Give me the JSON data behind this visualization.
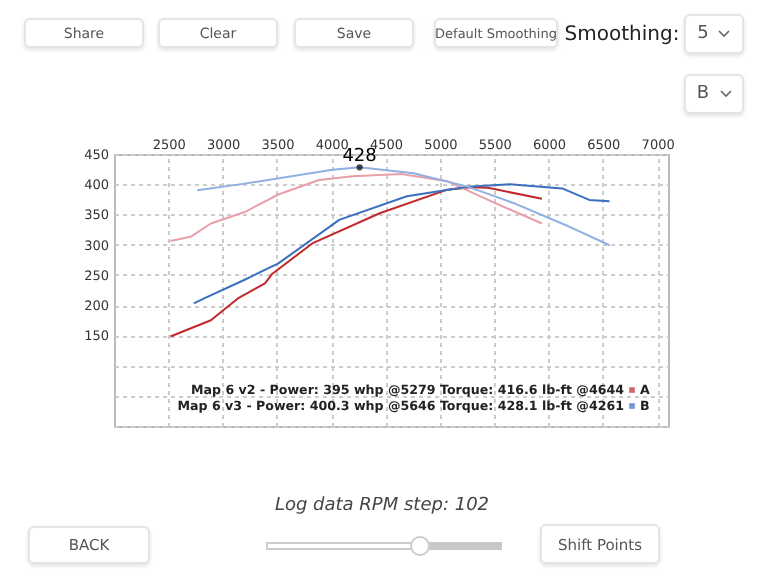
{
  "chart_data": {
    "type": "line",
    "xlim": [
      2000,
      7100
    ],
    "xticks": [
      2500,
      3000,
      3500,
      4000,
      4500,
      5000,
      5500,
      6000,
      6500,
      7000
    ],
    "ylim": [
      0,
      450
    ],
    "yticks": [
      {
        "value": 0,
        "label": null
      },
      {
        "value": 50,
        "label": null
      },
      {
        "value": 100,
        "label": null
      },
      150,
      200,
      250,
      300,
      350,
      400,
      450
    ],
    "grid": true,
    "legend": "bottom right",
    "series": [
      {
        "name": "A",
        "color": "#c0282c",
        "x": [
          2519,
          2892,
          3140,
          3390,
          3452,
          3825,
          4446,
          5069,
          5279,
          5443,
          5939
        ],
        "values": [
          148,
          175,
          211,
          236,
          251,
          302,
          352,
          391,
          395,
          394,
          376
        ]
      },
      {
        "color": "#e8a0a8",
        "x": [
          2519,
          2705,
          2892,
          3203,
          3513,
          3887,
          4198,
          4644,
          5069,
          5443,
          5939
        ],
        "values": [
          306,
          313,
          335,
          354,
          383,
          407,
          413,
          417,
          405,
          374,
          335
        ]
      },
      {
        "name": "B",
        "color": "#3a6fc0",
        "x": [
          2736,
          2830,
          3203,
          3513,
          4073,
          4696,
          5256,
          5646,
          6126,
          6375,
          6562
        ],
        "values": [
          203,
          211,
          242,
          269,
          341,
          380,
          396,
          400,
          393,
          374,
          372
        ]
      },
      {
        "color": "#8fb0e0",
        "x": [
          2767,
          3203,
          4011,
          4261,
          4758,
          5256,
          5691,
          6189,
          6562
        ],
        "values": [
          390,
          401,
          424,
          428,
          418,
          396,
          368,
          330,
          299
        ]
      }
    ],
    "annotations": [
      {
        "text": "428",
        "x": 4261,
        "y": 428
      },
      "Map 6 v2 - Power: 395 whp @5279 Torque: 416.6 lb-ft @4644",
      "Map 6 v3 - Power: 400.3 whp @5646 Torque: 428.1 lb-ft @4261",
      "Share",
      "Clear",
      "Save",
      "Default Smoothing",
      "Smoothing:",
      "5",
      "B",
      "BACK",
      "Log data RPM step: 102",
      "Shift Points"
    ]
  }
}
